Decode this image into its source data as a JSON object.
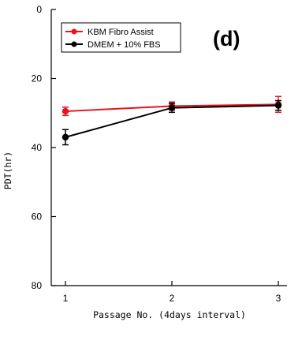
{
  "chart_data": {
    "type": "line",
    "panel_label": "(d)",
    "xlabel": "Passage No. (4days interval)",
    "ylabel": "PDT(hr)",
    "x_ticks": [
      "1",
      "2",
      "3"
    ],
    "y_ticks": [
      "0",
      "20",
      "40",
      "60",
      "80"
    ],
    "xlim": [
      0.8,
      3.1
    ],
    "ylim": [
      0,
      80
    ],
    "y_inverted": true,
    "legend_position": "top-left",
    "series": [
      {
        "name": "KBM Fibro Assist",
        "color": "#e8141c",
        "x": [
          1,
          2,
          3
        ],
        "y": [
          29.5,
          28.0,
          27.5
        ],
        "err": [
          1.2,
          1.2,
          2.3
        ]
      },
      {
        "name": "DMEM + 10% FBS",
        "color": "#000000",
        "x": [
          1,
          2,
          3
        ],
        "y": [
          37.0,
          28.5,
          27.8
        ],
        "err": [
          2.2,
          1.3,
          1.4
        ]
      }
    ]
  }
}
